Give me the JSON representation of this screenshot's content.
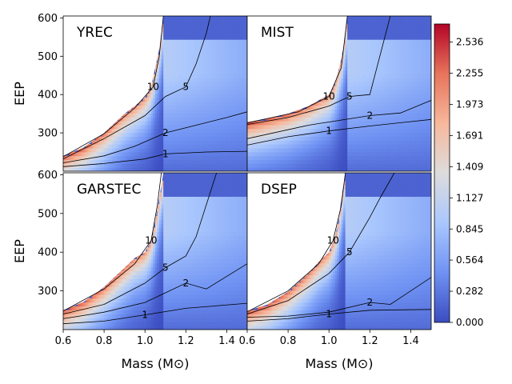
{
  "chart_data": {
    "type": "heatmap",
    "xlabel": "Mass (M⊙)",
    "ylabel": "EEP",
    "xlim": [
      0.6,
      1.5
    ],
    "ylim": [
      200,
      605
    ],
    "x_ticks": [
      "0.6",
      "0.8",
      "1.0",
      "1.2",
      "1.4"
    ],
    "y_ticks_top": [
      "300",
      "400",
      "500",
      "600"
    ],
    "y_ticks_bottom": [
      "300",
      "400",
      "500",
      "600"
    ],
    "colorbar": {
      "min": 0.0,
      "max": 2.7,
      "ticks": [
        "0.000",
        "0.282",
        "0.564",
        "0.845",
        "1.127",
        "1.409",
        "1.691",
        "1.973",
        "2.255",
        "2.536"
      ],
      "colormap": [
        "#3b4cc0",
        "#6f92f3",
        "#aac7fd",
        "#dddcdc",
        "#f7b89c",
        "#e7745b",
        "#b40426"
      ]
    },
    "panels": [
      {
        "title": "YREC",
        "cutoff": [
          [
            0.6,
            240
          ],
          [
            0.7,
            262
          ],
          [
            0.8,
            300
          ],
          [
            0.9,
            350
          ],
          [
            0.95,
            370
          ],
          [
            1.0,
            392
          ],
          [
            1.03,
            420
          ],
          [
            1.05,
            470
          ],
          [
            1.07,
            520
          ],
          [
            1.08,
            560
          ],
          [
            1.09,
            605
          ]
        ],
        "contours": [
          {
            "label": "1",
            "points": [
              [
                0.6,
                212
              ],
              [
                0.8,
                220
              ],
              [
                1.0,
                232
              ],
              [
                1.1,
                245
              ],
              [
                1.3,
                250
              ],
              [
                1.5,
                252
              ]
            ]
          },
          {
            "label": "2",
            "points": [
              [
                0.6,
                222
              ],
              [
                0.8,
                240
              ],
              [
                0.95,
                265
              ],
              [
                1.1,
                300
              ],
              [
                1.25,
                320
              ],
              [
                1.4,
                340
              ],
              [
                1.5,
                355
              ]
            ]
          },
          {
            "label": "5",
            "points": [
              [
                0.6,
                232
              ],
              [
                0.8,
                285
              ],
              [
                1.0,
                345
              ],
              [
                1.1,
                395
              ],
              [
                1.2,
                420
              ],
              [
                1.25,
                480
              ],
              [
                1.3,
                560
              ],
              [
                1.32,
                605
              ]
            ]
          },
          {
            "label": "10",
            "points": [
              [
                0.6,
                238
              ],
              [
                0.8,
                298
              ],
              [
                0.95,
                365
              ],
              [
                1.04,
                420
              ],
              [
                1.07,
                500
              ],
              [
                1.09,
                605
              ]
            ]
          }
        ]
      },
      {
        "title": "MIST",
        "cutoff": [
          [
            0.6,
            328
          ],
          [
            0.7,
            338
          ],
          [
            0.8,
            350
          ],
          [
            0.9,
            370
          ],
          [
            0.95,
            385
          ],
          [
            1.0,
            400
          ],
          [
            1.03,
            430
          ],
          [
            1.05,
            470
          ],
          [
            1.07,
            520
          ],
          [
            1.08,
            560
          ],
          [
            1.09,
            605
          ]
        ],
        "contours": [
          {
            "label": "1",
            "points": [
              [
                0.6,
                268
              ],
              [
                0.8,
                290
              ],
              [
                1.0,
                305
              ],
              [
                1.2,
                318
              ],
              [
                1.5,
                335
              ]
            ]
          },
          {
            "label": "2",
            "points": [
              [
                0.6,
                285
              ],
              [
                0.9,
                320
              ],
              [
                1.2,
                345
              ],
              [
                1.35,
                352
              ],
              [
                1.5,
                385
              ]
            ]
          },
          {
            "label": "5",
            "points": [
              [
                0.6,
                322
              ],
              [
                0.8,
                340
              ],
              [
                1.0,
                370
              ],
              [
                1.1,
                395
              ],
              [
                1.2,
                400
              ],
              [
                1.3,
                605
              ]
            ]
          },
          {
            "label": "10",
            "points": [
              [
                0.6,
                326
              ],
              [
                0.85,
                355
              ],
              [
                1.0,
                395
              ],
              [
                1.06,
                470
              ],
              [
                1.09,
                605
              ]
            ]
          }
        ]
      },
      {
        "title": "GARSTEC",
        "cutoff": [
          [
            0.6,
            250
          ],
          [
            0.7,
            272
          ],
          [
            0.8,
            310
          ],
          [
            0.9,
            360
          ],
          [
            0.95,
            385
          ],
          [
            1.0,
            400
          ],
          [
            1.03,
            430
          ],
          [
            1.05,
            480
          ],
          [
            1.07,
            540
          ],
          [
            1.08,
            570
          ],
          [
            1.09,
            605
          ]
        ],
        "contours": [
          {
            "label": "1",
            "points": [
              [
                0.6,
                215
              ],
              [
                0.8,
                222
              ],
              [
                1.0,
                238
              ],
              [
                1.2,
                255
              ],
              [
                1.5,
                268
              ]
            ]
          },
          {
            "label": "2",
            "points": [
              [
                0.6,
                228
              ],
              [
                0.8,
                245
              ],
              [
                1.0,
                270
              ],
              [
                1.2,
                320
              ],
              [
                1.3,
                305
              ],
              [
                1.5,
                370
              ]
            ]
          },
          {
            "label": "5",
            "points": [
              [
                0.6,
                240
              ],
              [
                0.8,
                265
              ],
              [
                1.0,
                320
              ],
              [
                1.1,
                360
              ],
              [
                1.2,
                390
              ],
              [
                1.25,
                440
              ],
              [
                1.35,
                605
              ]
            ]
          },
          {
            "label": "10",
            "points": [
              [
                0.6,
                248
              ],
              [
                0.8,
                305
              ],
              [
                0.95,
                370
              ],
              [
                1.03,
                430
              ],
              [
                1.06,
                520
              ],
              [
                1.08,
                605
              ]
            ]
          }
        ]
      },
      {
        "title": "DSEP",
        "cutoff": [
          [
            0.6,
            248
          ],
          [
            0.7,
            265
          ],
          [
            0.8,
            298
          ],
          [
            0.9,
            345
          ],
          [
            0.95,
            375
          ],
          [
            1.0,
            400
          ],
          [
            1.03,
            440
          ],
          [
            1.05,
            490
          ],
          [
            1.06,
            540
          ],
          [
            1.07,
            570
          ],
          [
            1.08,
            605
          ]
        ],
        "contours": [
          {
            "label": "1",
            "points": [
              [
                0.6,
                222
              ],
              [
                0.8,
                228
              ],
              [
                1.0,
                240
              ],
              [
                1.2,
                250
              ],
              [
                1.5,
                252
              ]
            ]
          },
          {
            "label": "2",
            "points": [
              [
                0.6,
                232
              ],
              [
                0.8,
                235
              ],
              [
                1.0,
                245
              ],
              [
                1.2,
                270
              ],
              [
                1.3,
                265
              ],
              [
                1.5,
                335
              ]
            ]
          },
          {
            "label": "5",
            "points": [
              [
                0.6,
                240
              ],
              [
                0.8,
                275
              ],
              [
                1.0,
                345
              ],
              [
                1.1,
                400
              ],
              [
                1.2,
                490
              ],
              [
                1.25,
                540
              ],
              [
                1.32,
                605
              ]
            ]
          },
          {
            "label": "10",
            "points": [
              [
                0.6,
                246
              ],
              [
                0.8,
                300
              ],
              [
                0.95,
                370
              ],
              [
                1.02,
                430
              ],
              [
                1.06,
                520
              ],
              [
                1.08,
                605
              ]
            ]
          }
        ]
      }
    ]
  }
}
